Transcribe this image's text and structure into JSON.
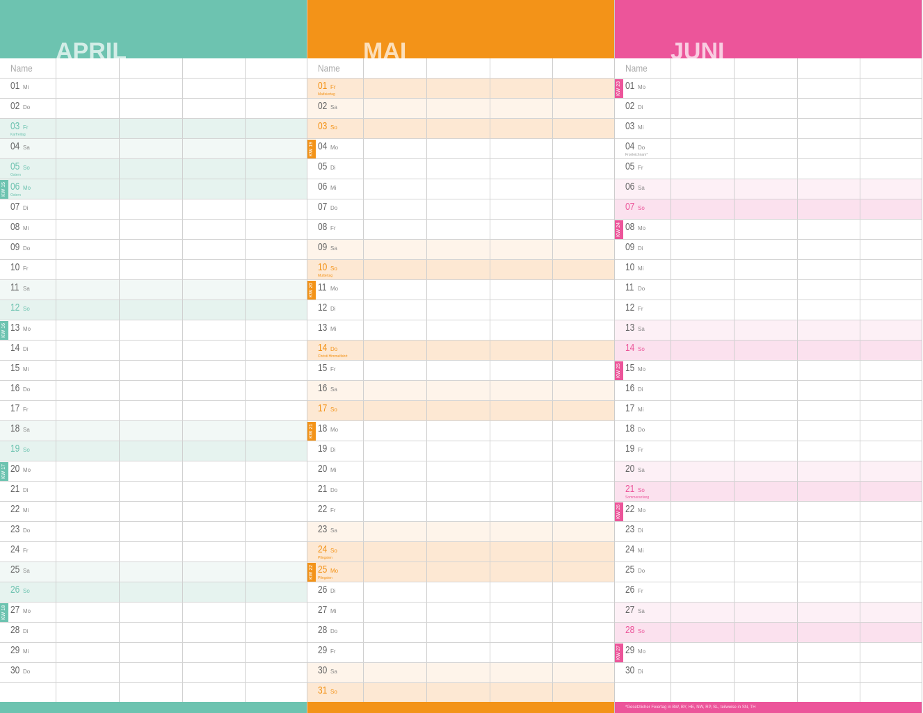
{
  "name_label": "Name",
  "months": [
    {
      "title": "APRIL",
      "color": "#6dc3b0",
      "tint_sat": "#f2f8f6",
      "tint_sun": "#e6f3ef",
      "days": [
        {
          "d": "01",
          "wd": "Mi"
        },
        {
          "d": "02",
          "wd": "Do"
        },
        {
          "d": "03",
          "wd": "Fr",
          "type": "sun",
          "note": "Karfreitag"
        },
        {
          "d": "04",
          "wd": "Sa",
          "type": "sat"
        },
        {
          "d": "05",
          "wd": "So",
          "type": "sun",
          "note": "Ostern"
        },
        {
          "d": "06",
          "wd": "Mo",
          "type": "sun",
          "note": "Ostern",
          "kw": "KW 15"
        },
        {
          "d": "07",
          "wd": "Di"
        },
        {
          "d": "08",
          "wd": "Mi"
        },
        {
          "d": "09",
          "wd": "Do"
        },
        {
          "d": "10",
          "wd": "Fr"
        },
        {
          "d": "11",
          "wd": "Sa",
          "type": "sat"
        },
        {
          "d": "12",
          "wd": "So",
          "type": "sun"
        },
        {
          "d": "13",
          "wd": "Mo",
          "kw": "KW 16"
        },
        {
          "d": "14",
          "wd": "Di"
        },
        {
          "d": "15",
          "wd": "Mi"
        },
        {
          "d": "16",
          "wd": "Do"
        },
        {
          "d": "17",
          "wd": "Fr"
        },
        {
          "d": "18",
          "wd": "Sa",
          "type": "sat"
        },
        {
          "d": "19",
          "wd": "So",
          "type": "sun"
        },
        {
          "d": "20",
          "wd": "Mo",
          "kw": "KW 17"
        },
        {
          "d": "21",
          "wd": "Di"
        },
        {
          "d": "22",
          "wd": "Mi"
        },
        {
          "d": "23",
          "wd": "Do"
        },
        {
          "d": "24",
          "wd": "Fr"
        },
        {
          "d": "25",
          "wd": "Sa",
          "type": "sat"
        },
        {
          "d": "26",
          "wd": "So",
          "type": "sun"
        },
        {
          "d": "27",
          "wd": "Mo",
          "kw": "KW 18"
        },
        {
          "d": "28",
          "wd": "Di"
        },
        {
          "d": "29",
          "wd": "Mi"
        },
        {
          "d": "30",
          "wd": "Do"
        }
      ]
    },
    {
      "title": "MAI",
      "color": "#f39318",
      "tint_sat": "#fef4ea",
      "tint_sun": "#fde8d3",
      "days": [
        {
          "d": "01",
          "wd": "Fr",
          "type": "sun",
          "note": "Maifeiertag"
        },
        {
          "d": "02",
          "wd": "Sa",
          "type": "sat"
        },
        {
          "d": "03",
          "wd": "So",
          "type": "sun"
        },
        {
          "d": "04",
          "wd": "Mo",
          "kw": "KW 19"
        },
        {
          "d": "05",
          "wd": "Di"
        },
        {
          "d": "06",
          "wd": "Mi"
        },
        {
          "d": "07",
          "wd": "Do"
        },
        {
          "d": "08",
          "wd": "Fr"
        },
        {
          "d": "09",
          "wd": "Sa",
          "type": "sat"
        },
        {
          "d": "10",
          "wd": "So",
          "type": "sun",
          "note": "Muttertag"
        },
        {
          "d": "11",
          "wd": "Mo",
          "kw": "KW 20"
        },
        {
          "d": "12",
          "wd": "Di"
        },
        {
          "d": "13",
          "wd": "Mi"
        },
        {
          "d": "14",
          "wd": "Do",
          "type": "sun",
          "note": "Christi Himmelfahrt"
        },
        {
          "d": "15",
          "wd": "Fr"
        },
        {
          "d": "16",
          "wd": "Sa",
          "type": "sat"
        },
        {
          "d": "17",
          "wd": "So",
          "type": "sun"
        },
        {
          "d": "18",
          "wd": "Mo",
          "kw": "KW 21"
        },
        {
          "d": "19",
          "wd": "Di"
        },
        {
          "d": "20",
          "wd": "Mi"
        },
        {
          "d": "21",
          "wd": "Do"
        },
        {
          "d": "22",
          "wd": "Fr"
        },
        {
          "d": "23",
          "wd": "Sa",
          "type": "sat"
        },
        {
          "d": "24",
          "wd": "So",
          "type": "sun",
          "note": "Pfingsten"
        },
        {
          "d": "25",
          "wd": "Mo",
          "type": "sun",
          "note": "Pfingsten",
          "kw": "KW 22"
        },
        {
          "d": "26",
          "wd": "Di"
        },
        {
          "d": "27",
          "wd": "Mi"
        },
        {
          "d": "28",
          "wd": "Do"
        },
        {
          "d": "29",
          "wd": "Fr"
        },
        {
          "d": "30",
          "wd": "Sa",
          "type": "sat"
        },
        {
          "d": "31",
          "wd": "So",
          "type": "sun"
        }
      ]
    },
    {
      "title": "JUNI",
      "color": "#ec559a",
      "tint_sat": "#fdf0f6",
      "tint_sun": "#fbe1ee",
      "footnote": "*Gesetzlicher Feiertag in BW, BY, HE, NW, RP, SL, teilweise in SN, TH",
      "days": [
        {
          "d": "01",
          "wd": "Mo",
          "kw": "KW 23"
        },
        {
          "d": "02",
          "wd": "Di"
        },
        {
          "d": "03",
          "wd": "Mi"
        },
        {
          "d": "04",
          "wd": "Do",
          "note": "Fronleichnam*"
        },
        {
          "d": "05",
          "wd": "Fr"
        },
        {
          "d": "06",
          "wd": "Sa",
          "type": "sat"
        },
        {
          "d": "07",
          "wd": "So",
          "type": "sun"
        },
        {
          "d": "08",
          "wd": "Mo",
          "kw": "KW 24"
        },
        {
          "d": "09",
          "wd": "Di"
        },
        {
          "d": "10",
          "wd": "Mi"
        },
        {
          "d": "11",
          "wd": "Do"
        },
        {
          "d": "12",
          "wd": "Fr"
        },
        {
          "d": "13",
          "wd": "Sa",
          "type": "sat"
        },
        {
          "d": "14",
          "wd": "So",
          "type": "sun"
        },
        {
          "d": "15",
          "wd": "Mo",
          "kw": "KW 25"
        },
        {
          "d": "16",
          "wd": "Di"
        },
        {
          "d": "17",
          "wd": "Mi"
        },
        {
          "d": "18",
          "wd": "Do"
        },
        {
          "d": "19",
          "wd": "Fr"
        },
        {
          "d": "20",
          "wd": "Sa",
          "type": "sat"
        },
        {
          "d": "21",
          "wd": "So",
          "type": "sun",
          "note": "Sommeranfang"
        },
        {
          "d": "22",
          "wd": "Mo",
          "kw": "KW 26"
        },
        {
          "d": "23",
          "wd": "Di"
        },
        {
          "d": "24",
          "wd": "Mi"
        },
        {
          "d": "25",
          "wd": "Do"
        },
        {
          "d": "26",
          "wd": "Fr"
        },
        {
          "d": "27",
          "wd": "Sa",
          "type": "sat"
        },
        {
          "d": "28",
          "wd": "So",
          "type": "sun"
        },
        {
          "d": "29",
          "wd": "Mo",
          "kw": "KW 27"
        },
        {
          "d": "30",
          "wd": "Di"
        }
      ]
    }
  ]
}
